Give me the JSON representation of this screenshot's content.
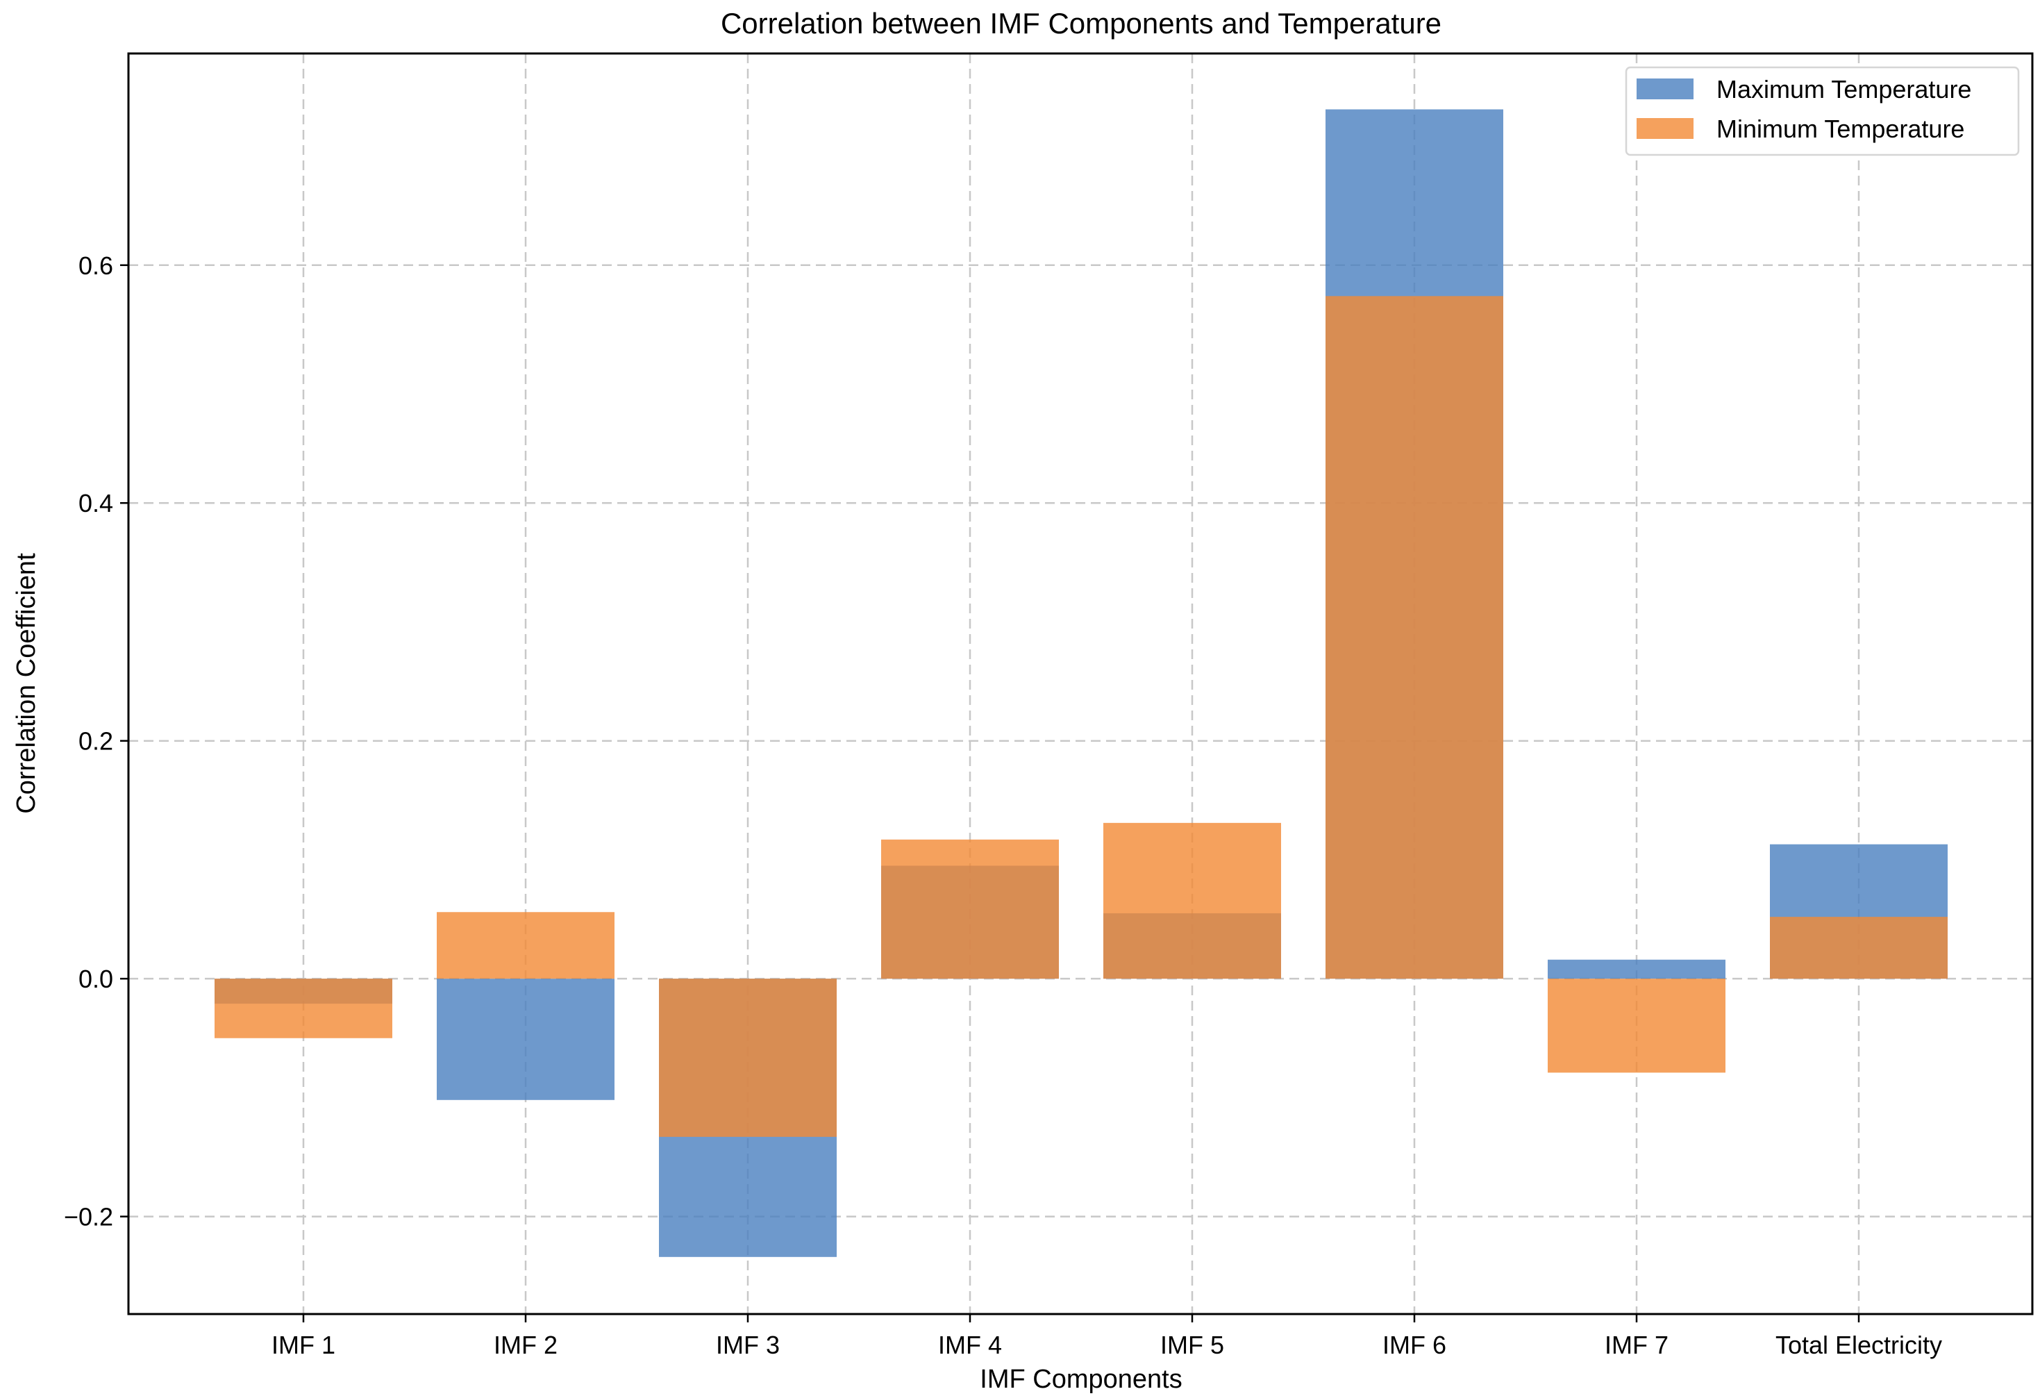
{
  "chart_data": {
    "type": "bar",
    "title": "Correlation between IMF Components and Temperature",
    "xlabel": "IMF Components",
    "ylabel": "Correlation Coefficient",
    "categories": [
      "IMF 1",
      "IMF 2",
      "IMF 3",
      "IMF 4",
      "IMF 5",
      "IMF 6",
      "IMF 7",
      "Total Electricity"
    ],
    "series": [
      {
        "name": "Maximum Temperature",
        "color": "#4a7fbf",
        "values": [
          -0.021,
          -0.102,
          -0.234,
          0.095,
          0.055,
          0.731,
          0.016,
          0.113
        ]
      },
      {
        "name": "Minimum Temperature",
        "color": "#f28a35",
        "values": [
          -0.05,
          0.056,
          -0.133,
          0.117,
          0.131,
          0.574,
          -0.079,
          0.052
        ]
      }
    ],
    "ylim": [
      -0.282,
      0.778
    ],
    "yticks": [
      -0.2,
      0.0,
      0.2,
      0.4,
      0.6
    ],
    "ytick_labels": [
      "−0.2",
      "0.0",
      "0.2",
      "0.4",
      "0.6"
    ],
    "grid": true,
    "bar_alpha": 0.8,
    "legend_position": "top-right"
  }
}
